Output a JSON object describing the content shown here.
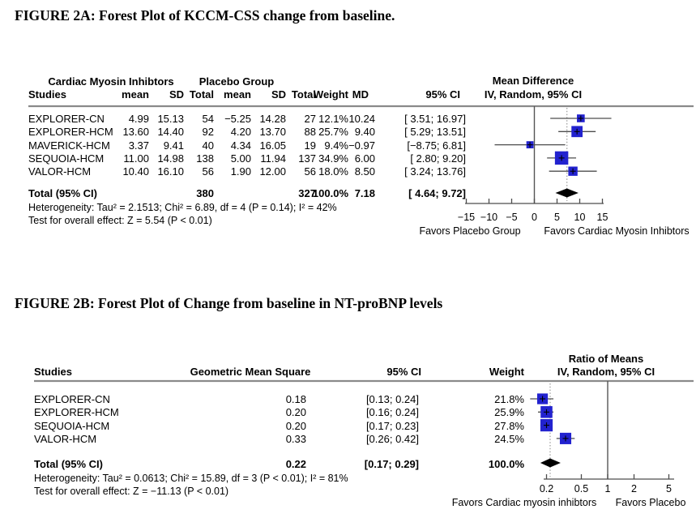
{
  "page": {
    "background": "#ffffff"
  },
  "colors": {
    "marker_blue": "#2222cf",
    "diamond_black": "#000000",
    "ci_line": "#4d4d4d",
    "rule_gray": "#8a8a8a",
    "axis": "#4d4d4d",
    "null_line": "#555555",
    "dashed_line": "#999999"
  },
  "figure_a": {
    "title": "FIGURE 2A: Forest Plot of KCCM-CSS change from baseline.",
    "group_headers": [
      "Cardiac Myosin Inhibtors",
      "Placebo Group"
    ],
    "columns": [
      "Studies",
      "mean",
      "SD",
      "Total",
      "mean",
      "SD",
      "Total",
      "Weight",
      "MD",
      "95% CI"
    ],
    "effect_header": {
      "line1": "Mean Difference",
      "line2": "IV, Random, 95% CI"
    },
    "rows": [
      {
        "study": "EXPLORER-CN",
        "mean1": "4.99",
        "sd1": "15.13",
        "total1": "54",
        "mean2": "−5.25",
        "sd2": "14.28",
        "total2": "27",
        "weight": "12.1%",
        "md": "10.24",
        "ci": "[ 3.51; 16.97]"
      },
      {
        "study": "EXPLORER-HCM",
        "mean1": "13.60",
        "sd1": "14.40",
        "total1": "92",
        "mean2": "4.20",
        "sd2": "13.70",
        "total2": "88",
        "weight": "25.7%",
        "md": "9.40",
        "ci": "[ 5.29; 13.51]"
      },
      {
        "study": "MAVERICK-HCM",
        "mean1": "3.37",
        "sd1": "9.41",
        "total1": "40",
        "mean2": "4.34",
        "sd2": "16.05",
        "total2": "19",
        "weight": "9.4%",
        "md": "−0.97",
        "ci": "[−8.75; 6.81]"
      },
      {
        "study": "SEQUOIA-HCM",
        "mean1": "11.00",
        "sd1": "14.98",
        "total1": "138",
        "mean2": "5.00",
        "sd2": "11.94",
        "total2": "137",
        "weight": "34.9%",
        "md": "6.00",
        "ci": "[ 2.80; 9.20]"
      },
      {
        "study": "VALOR-HCM",
        "mean1": "10.40",
        "sd1": "16.10",
        "total1": "56",
        "mean2": "1.90",
        "sd2": "12.00",
        "total2": "56",
        "weight": "18.0%",
        "md": "8.50",
        "ci": "[ 3.24; 13.76]"
      }
    ],
    "total_row": {
      "study": "Total (95% CI)",
      "total1": "380",
      "total2": "327",
      "weight": "100.0%",
      "md": "7.18",
      "ci": "[ 4.64; 9.72]"
    },
    "heterogeneity": "Heterogeneity: Tau² = 2.1513; Chi² = 6.89, df = 4 (P = 0.14); I² = 42%",
    "overall_effect": "Test for overall effect: Z = 5.54 (P < 0.01)",
    "favors_left": "Favors Placebo Group",
    "favors_right": "Favors Cardiac Myosin Inhibtors"
  },
  "figure_b": {
    "title": "FIGURE 2B: Forest Plot of Change from baseline in NT-proBNP levels",
    "columns": [
      "Studies",
      "Geometric Mean Square",
      "95% CI",
      "Weight"
    ],
    "effect_header": {
      "line1": "Ratio of Means",
      "line2": "IV, Random, 95% CI"
    },
    "rows": [
      {
        "study": "EXPLORER-CN",
        "gms": "0.18",
        "ci": "[0.13; 0.24]",
        "weight": "21.8%"
      },
      {
        "study": "EXPLORER-HCM",
        "gms": "0.20",
        "ci": "[0.16; 0.24]",
        "weight": "25.9%"
      },
      {
        "study": "SEQUOIA-HCM",
        "gms": "0.20",
        "ci": "[0.17; 0.23]",
        "weight": "27.8%"
      },
      {
        "study": "VALOR-HCM",
        "gms": "0.33",
        "ci": "[0.26; 0.42]",
        "weight": "24.5%"
      }
    ],
    "total_row": {
      "study": "Total (95% CI)",
      "gms": "0.22",
      "ci": "[0.17; 0.29]",
      "weight": "100.0%"
    },
    "heterogeneity": "Heterogeneity: Tau² = 0.0613; Chi² = 15.89, df = 3 (P < 0.01); I² = 81%",
    "overall_effect": "Test for overall effect: Z = −11.13 (P < 0.01)",
    "favors_left": "Favors Cardiac myosin inhibtors",
    "favors_right": "Favors Placebo"
  },
  "chart_data": [
    {
      "type": "forest",
      "figure": "2A",
      "title": "Forest Plot of KCCM-CSS change from baseline",
      "effect_measure": "Mean Difference, IV, Random, 95% CI",
      "scale": "linear",
      "studies": [
        "EXPLORER-CN",
        "EXPLORER-HCM",
        "MAVERICK-HCM",
        "SEQUOIA-HCM",
        "VALOR-HCM"
      ],
      "cmi_mean": [
        4.99,
        13.6,
        3.37,
        11.0,
        10.4
      ],
      "cmi_sd": [
        15.13,
        14.4,
        9.41,
        14.98,
        16.1
      ],
      "cmi_total": [
        54,
        92,
        40,
        138,
        56
      ],
      "placebo_mean": [
        -5.25,
        4.2,
        4.34,
        5.0,
        1.9
      ],
      "placebo_sd": [
        14.28,
        13.7,
        16.05,
        11.94,
        12.0
      ],
      "placebo_total": [
        27,
        88,
        19,
        137,
        56
      ],
      "estimates": [
        10.24,
        9.4,
        -0.97,
        6.0,
        8.5
      ],
      "ci_low": [
        3.51,
        5.29,
        -8.75,
        2.8,
        3.24
      ],
      "ci_high": [
        16.97,
        13.51,
        6.81,
        9.2,
        13.76
      ],
      "weights_pct": [
        12.1,
        25.7,
        9.4,
        34.9,
        18.0
      ],
      "overall": {
        "estimate": 7.18,
        "ci_low": 4.64,
        "ci_high": 9.72,
        "weight_pct": 100.0,
        "cmi_total": 380,
        "placebo_total": 327
      },
      "heterogeneity": {
        "tau2": 2.1513,
        "chi2": 6.89,
        "df": 4,
        "p": "0.14",
        "i2_pct": 42
      },
      "overall_test": {
        "z": 5.54,
        "p": "< 0.01"
      },
      "axis_ticks": [
        -15,
        -10,
        -5,
        0,
        5,
        10,
        15
      ],
      "null_line": 0,
      "xlabel_left": "Favors Placebo Group",
      "xlabel_right": "Favors Cardiac Myosin Inhibtors"
    },
    {
      "type": "forest",
      "figure": "2B",
      "title": "Forest Plot of Change from baseline in NT-proBNP levels",
      "effect_measure": "Ratio of Means, IV, Random, 95% CI",
      "scale": "log",
      "studies": [
        "EXPLORER-CN",
        "EXPLORER-HCM",
        "SEQUOIA-HCM",
        "VALOR-HCM"
      ],
      "estimates": [
        0.18,
        0.2,
        0.2,
        0.33
      ],
      "ci_low": [
        0.13,
        0.16,
        0.17,
        0.26
      ],
      "ci_high": [
        0.24,
        0.24,
        0.23,
        0.42
      ],
      "weights_pct": [
        21.8,
        25.9,
        27.8,
        24.5
      ],
      "overall": {
        "estimate": 0.22,
        "ci_low": 0.17,
        "ci_high": 0.29,
        "weight_pct": 100.0
      },
      "heterogeneity": {
        "tau2": 0.0613,
        "chi2": 15.89,
        "df": 3,
        "p": "< 0.01",
        "i2_pct": 81
      },
      "overall_test": {
        "z": -11.13,
        "p": "< 0.01"
      },
      "axis_ticks": [
        0.2,
        0.5,
        1,
        2,
        5
      ],
      "null_line": 1,
      "xlabel_left": "Favors Cardiac myosin inhibtors",
      "xlabel_right": "Favors Placebo"
    }
  ]
}
